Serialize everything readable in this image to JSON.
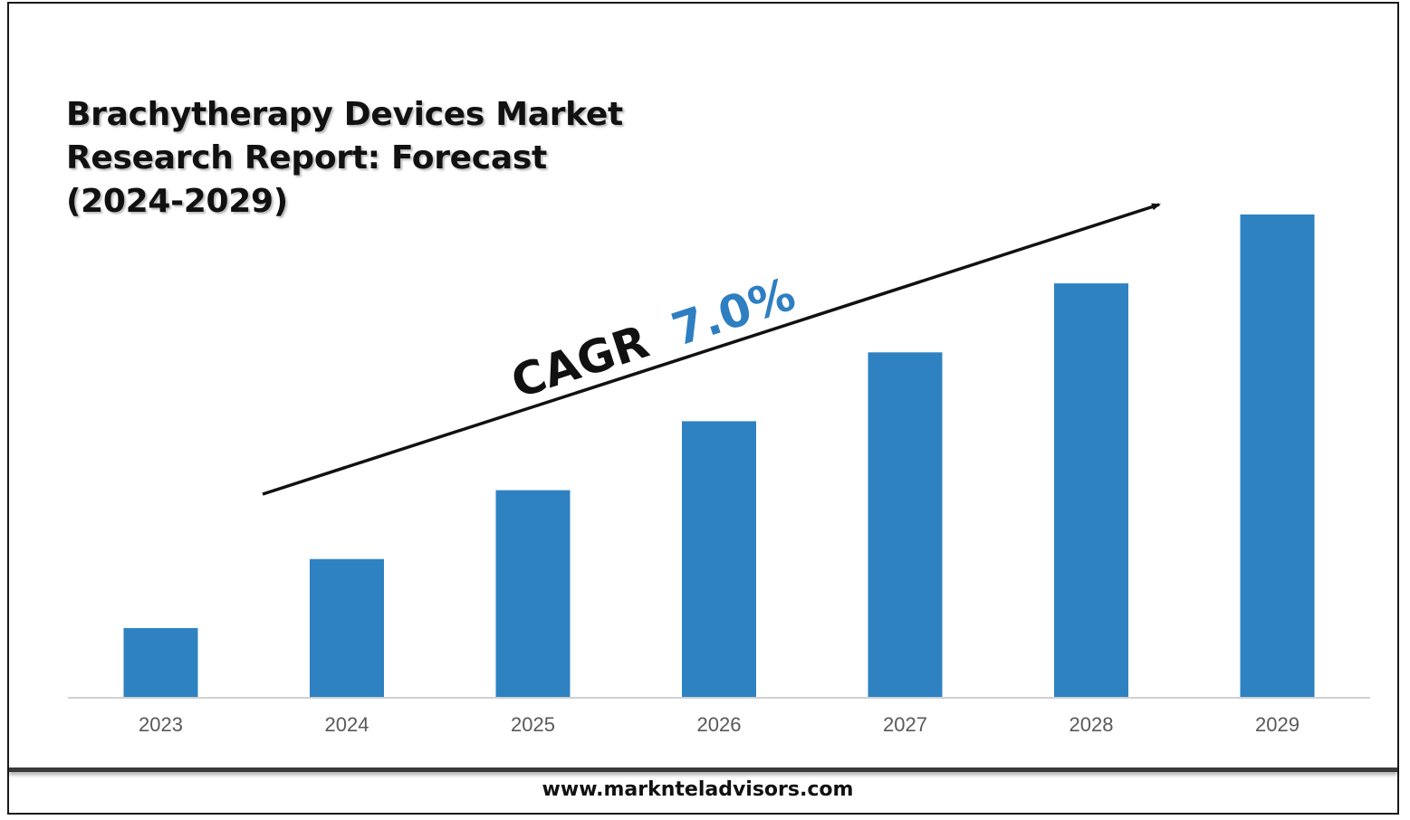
{
  "chart_data": {
    "type": "bar",
    "title_lines": [
      "Brachytherapy Devices Market",
      "Research Report: Forecast",
      "(2024-2029)"
    ],
    "categories": [
      "2023",
      "2024",
      "2025",
      "2026",
      "2027",
      "2028",
      "2029"
    ],
    "values": [
      1,
      2,
      3,
      4,
      5,
      6,
      7
    ],
    "ylim": [
      0,
      7.2
    ],
    "xlabel": "",
    "ylabel": "",
    "grid": false,
    "bar_color": "#2e82c2",
    "annotation": {
      "prefix": "CAGR",
      "value": "7.0%",
      "prefix_color": "#111111",
      "value_color": "#2e7fc1"
    }
  },
  "footer": {
    "url": "www.marknteladvisors.com"
  }
}
